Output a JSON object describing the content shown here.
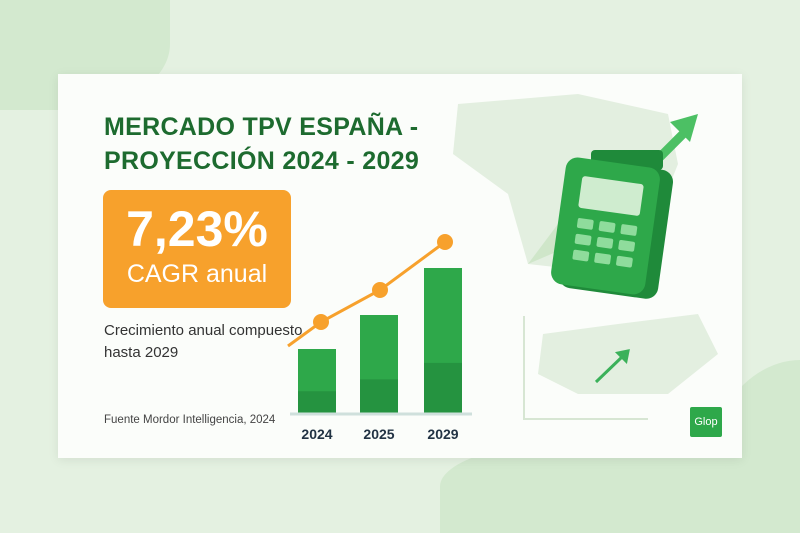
{
  "title_line1": "MERCADO TPV ESPAÑA -",
  "title_line2": "PROYECCIÓN 2024 - 2029",
  "cagr": {
    "value": "7,23%",
    "label": "CAGR anual"
  },
  "description": "Crecimiento anual compuesto hasta 2029",
  "source": "Fuente  Mordor Intelligencia, 2024",
  "logo": "Glop",
  "colors": {
    "bar": "#2ea84a",
    "line": "#f7a12c",
    "title": "#1d6b2f"
  },
  "chart_data": {
    "type": "bar",
    "categories": [
      "2024",
      "2025",
      "2029"
    ],
    "values": [
      65,
      99,
      146
    ],
    "line_values": [
      92,
      124,
      172
    ],
    "title": "",
    "xlabel": "",
    "ylabel": ""
  }
}
